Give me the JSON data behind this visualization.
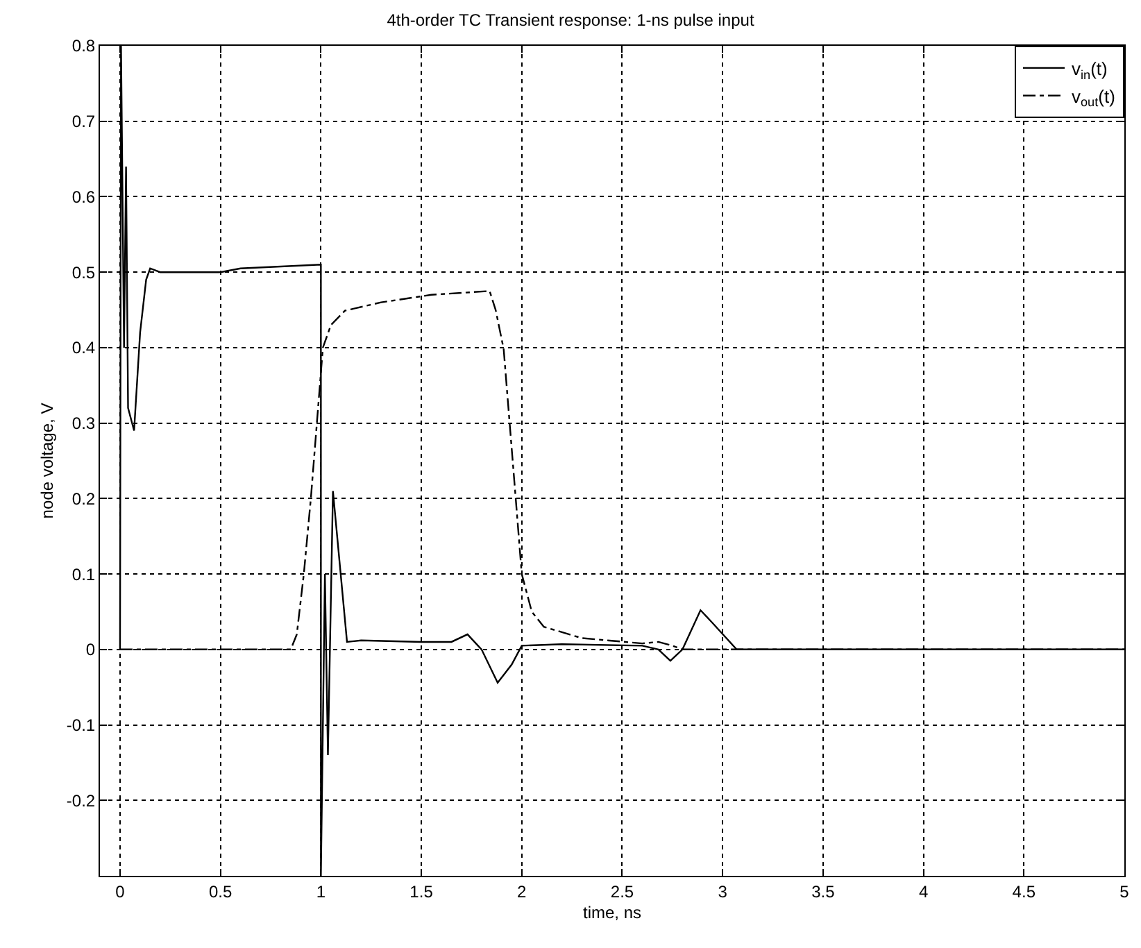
{
  "chart_data": {
    "type": "line",
    "title": "4th-order TC Transient response: 1-ns pulse input",
    "xlabel": "time, ns",
    "ylabel": "node voltage, V",
    "xlim": [
      -0.1,
      5
    ],
    "xticks": [
      0,
      0.5,
      1,
      1.5,
      2,
      2.5,
      3,
      3.5,
      4,
      4.5,
      5
    ],
    "ylim": [
      -0.3,
      0.8
    ],
    "yticks": [
      -0.2,
      -0.1,
      0,
      0.1,
      0.2,
      0.3,
      0.4,
      0.5,
      0.6,
      0.7,
      0.8
    ],
    "grid": true,
    "legend": "top right",
    "marker": "none",
    "series": [
      {
        "name": "v$_{in}$(t)",
        "color": "#000000",
        "line_style": "solid",
        "x": [
          0,
          0.005,
          0.02,
          0.03,
          0.04,
          0.07,
          0.1,
          0.13,
          0.15,
          0.2,
          0.5,
          0.6,
          1.0,
          1.0,
          1.02,
          1.035,
          1.06,
          1.13,
          1.2,
          1.5,
          1.65,
          1.73,
          1.8,
          1.88,
          1.95,
          2.0,
          2.2,
          2.6,
          2.68,
          2.74,
          2.8,
          2.89,
          2.95,
          3.07,
          3.5,
          4.0,
          4.5,
          5.0
        ],
        "values": [
          0,
          0.8,
          0.4,
          0.64,
          0.32,
          0.29,
          0.42,
          0.49,
          0.505,
          0.5,
          0.5,
          0.505,
          0.51,
          -0.3,
          0.1,
          -0.14,
          0.21,
          0.01,
          0.012,
          0.01,
          0.01,
          0.02,
          0.0,
          -0.044,
          -0.02,
          0.005,
          0.007,
          0.005,
          0.0,
          -0.015,
          0.0,
          0.052,
          0.035,
          0.0,
          0.0,
          0.0,
          0.0,
          0.0
        ]
      },
      {
        "name": "v$_{out}$(t)",
        "color": "#000000",
        "line_style": "dashdot",
        "x": [
          0,
          0.5,
          0.85,
          0.88,
          0.915,
          0.95,
          0.98,
          1.01,
          1.05,
          1.12,
          1.3,
          1.55,
          1.84,
          1.87,
          1.91,
          1.97,
          2.0,
          2.05,
          2.11,
          2.3,
          2.6,
          2.68,
          2.75,
          2.8,
          3.0,
          3.5,
          4.0,
          4.5,
          5.0
        ],
        "values": [
          0,
          0,
          0,
          0.02,
          0.1,
          0.2,
          0.3,
          0.4,
          0.43,
          0.449,
          0.46,
          0.47,
          0.475,
          0.45,
          0.398,
          0.2,
          0.1,
          0.05,
          0.03,
          0.015,
          0.008,
          0.01,
          0.005,
          0.0,
          0.0,
          0.0,
          0.0,
          0.0,
          0.0
        ]
      }
    ]
  }
}
